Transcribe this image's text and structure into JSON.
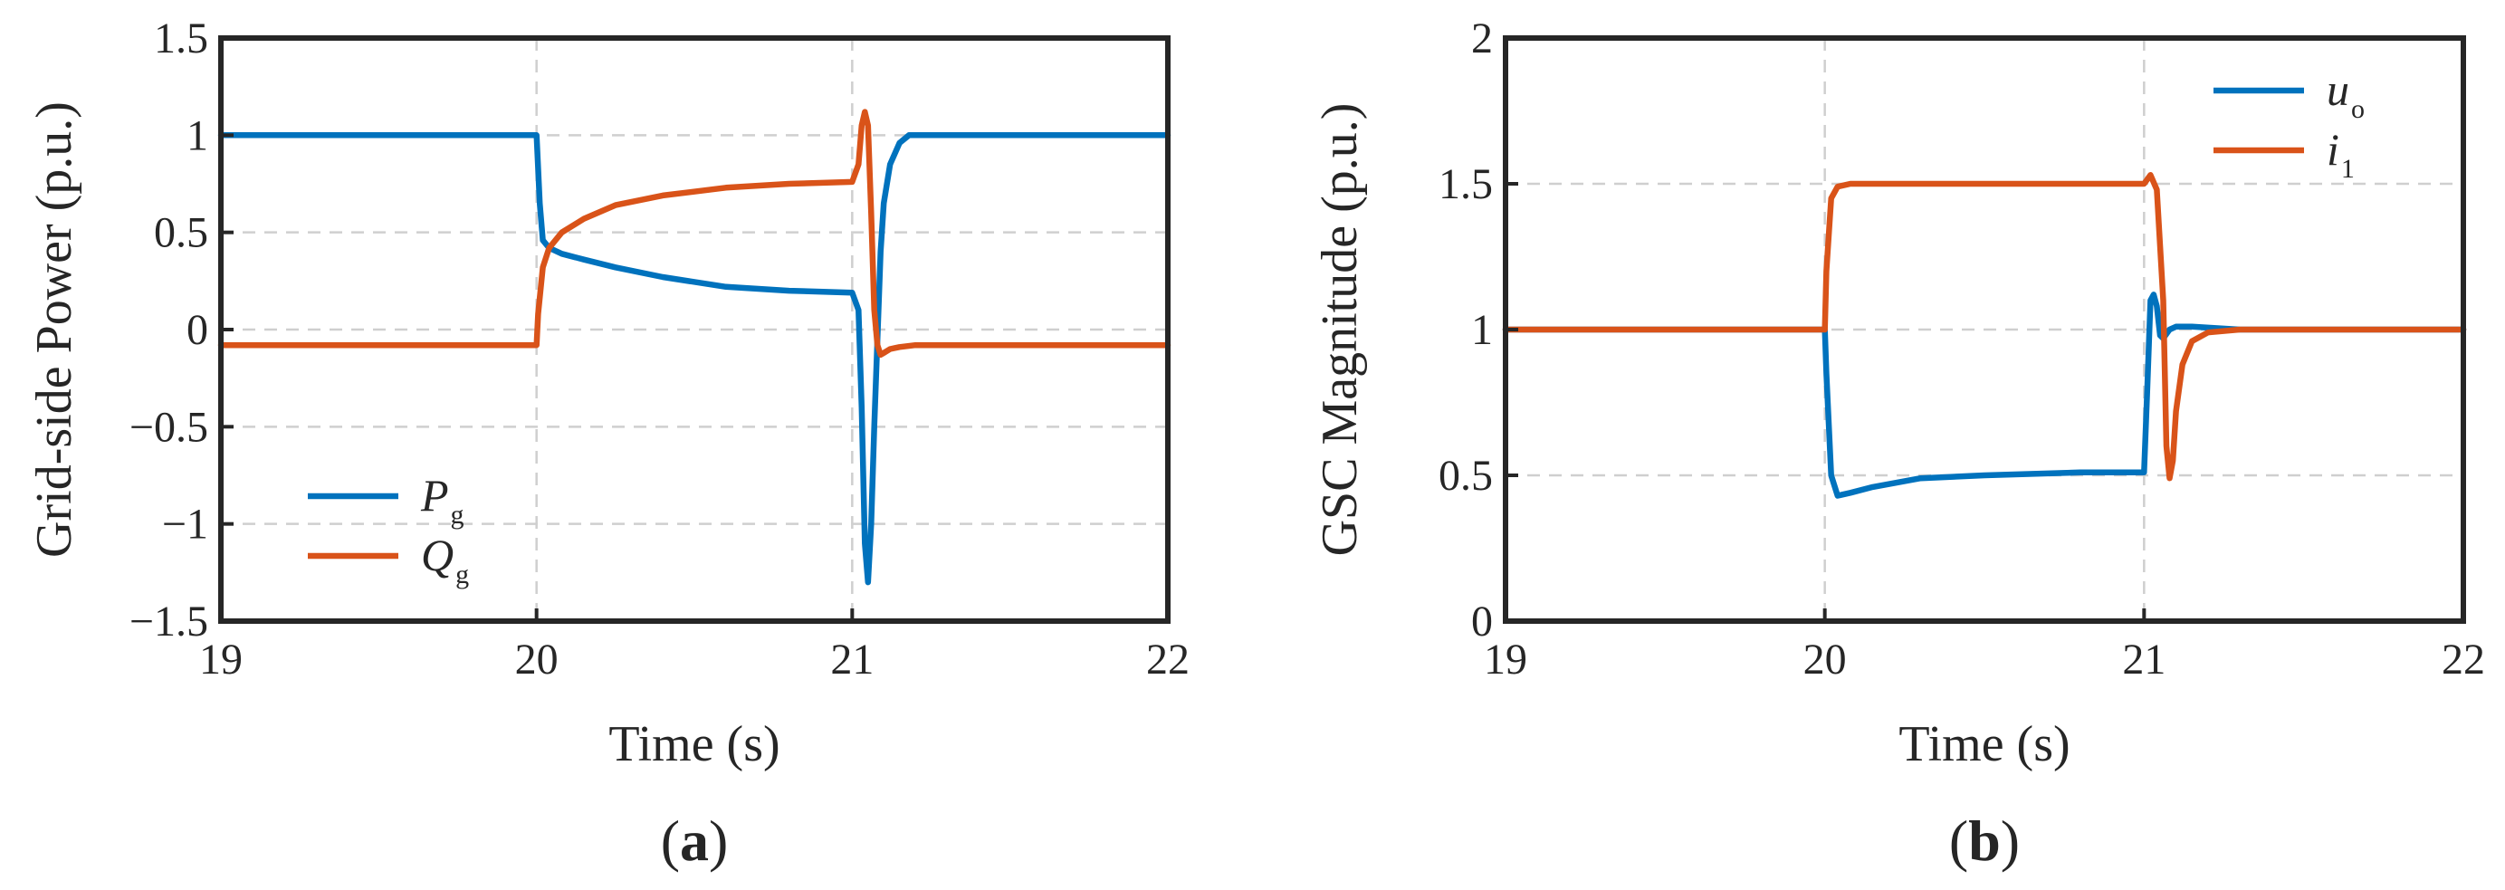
{
  "chart_data": [
    {
      "type": "line",
      "caption": "a",
      "xlabel": "Time (s)",
      "ylabel": "Grid-side Power (p.u.)",
      "xlim": [
        19,
        22
      ],
      "ylim": [
        -1.5,
        1.5
      ],
      "xticks": [
        19,
        20,
        21,
        22
      ],
      "xtick_labels": [
        "19",
        "20",
        "21",
        "22"
      ],
      "yticks": [
        -1.5,
        -1,
        -0.5,
        0,
        0.5,
        1,
        1.5
      ],
      "ytick_labels": [
        "−1.5",
        "−1",
        "−0.5",
        "0",
        "0.5",
        "1",
        "1.5"
      ],
      "grid": true,
      "legend_position": "bottom-left",
      "series": [
        {
          "name": "P",
          "name_sub": "g",
          "color": "#0072BD",
          "x": [
            19,
            20,
            20.01,
            20.02,
            20.04,
            20.08,
            20.15,
            20.25,
            20.4,
            20.6,
            20.8,
            21.0,
            21.02,
            21.03,
            21.04,
            21.05,
            21.06,
            21.07,
            21.08,
            21.09,
            21.1,
            21.12,
            21.15,
            21.18,
            21.25,
            22
          ],
          "y": [
            1.0,
            1.0,
            0.65,
            0.46,
            0.42,
            0.39,
            0.36,
            0.32,
            0.27,
            0.22,
            0.2,
            0.19,
            0.1,
            -0.4,
            -1.1,
            -1.3,
            -1.0,
            -0.5,
            -0.05,
            0.4,
            0.65,
            0.85,
            0.96,
            1.0,
            1.0,
            1.0
          ]
        },
        {
          "name": "Q",
          "name_sub": "g",
          "color": "#D95319",
          "x": [
            19,
            20,
            20.005,
            20.02,
            20.04,
            20.08,
            20.15,
            20.25,
            20.4,
            20.6,
            20.8,
            21.0,
            21.02,
            21.03,
            21.04,
            21.05,
            21.06,
            21.07,
            21.08,
            21.09,
            21.1,
            21.12,
            21.15,
            21.2,
            21.3,
            22
          ],
          "y": [
            -0.08,
            -0.08,
            0.08,
            0.32,
            0.42,
            0.5,
            0.57,
            0.64,
            0.69,
            0.73,
            0.75,
            0.76,
            0.85,
            1.05,
            1.12,
            1.05,
            0.6,
            0.1,
            -0.08,
            -0.13,
            -0.12,
            -0.1,
            -0.09,
            -0.08,
            -0.08,
            -0.08
          ]
        }
      ]
    },
    {
      "type": "line",
      "caption": "b",
      "xlabel": "Time (s)",
      "ylabel": "GSC Magnitude (p.u.)",
      "xlim": [
        19,
        22
      ],
      "ylim": [
        0,
        2
      ],
      "xticks": [
        19,
        20,
        21,
        22
      ],
      "xtick_labels": [
        "19",
        "20",
        "21",
        "22"
      ],
      "yticks": [
        0,
        0.5,
        1,
        1.5,
        2
      ],
      "ytick_labels": [
        "0",
        "0.5",
        "1",
        "1.5",
        "2"
      ],
      "grid": true,
      "legend_position": "top-right",
      "series": [
        {
          "name": "u",
          "name_sub": "o",
          "color": "#0072BD",
          "x": [
            19,
            20,
            20.005,
            20.02,
            20.04,
            20.08,
            20.15,
            20.3,
            20.5,
            20.8,
            21.0,
            21.01,
            21.02,
            21.03,
            21.04,
            21.05,
            21.06,
            21.08,
            21.1,
            21.15,
            21.3,
            22
          ],
          "y": [
            1.0,
            1.0,
            0.85,
            0.5,
            0.43,
            0.44,
            0.46,
            0.49,
            0.5,
            0.51,
            0.51,
            0.8,
            1.1,
            1.12,
            1.08,
            0.98,
            0.97,
            1.0,
            1.01,
            1.01,
            1.0,
            1.0
          ]
        },
        {
          "name": "i",
          "name_sub": "1",
          "color": "#D95319",
          "x": [
            19,
            20,
            20.005,
            20.02,
            20.04,
            20.08,
            20.15,
            20.5,
            21.0,
            21.02,
            21.04,
            21.06,
            21.07,
            21.08,
            21.09,
            21.1,
            21.12,
            21.15,
            21.2,
            21.3,
            22
          ],
          "y": [
            1.0,
            1.0,
            1.2,
            1.45,
            1.49,
            1.5,
            1.5,
            1.5,
            1.5,
            1.53,
            1.48,
            1.1,
            0.6,
            0.49,
            0.55,
            0.72,
            0.88,
            0.96,
            0.99,
            1.0,
            1.0
          ]
        }
      ]
    }
  ]
}
